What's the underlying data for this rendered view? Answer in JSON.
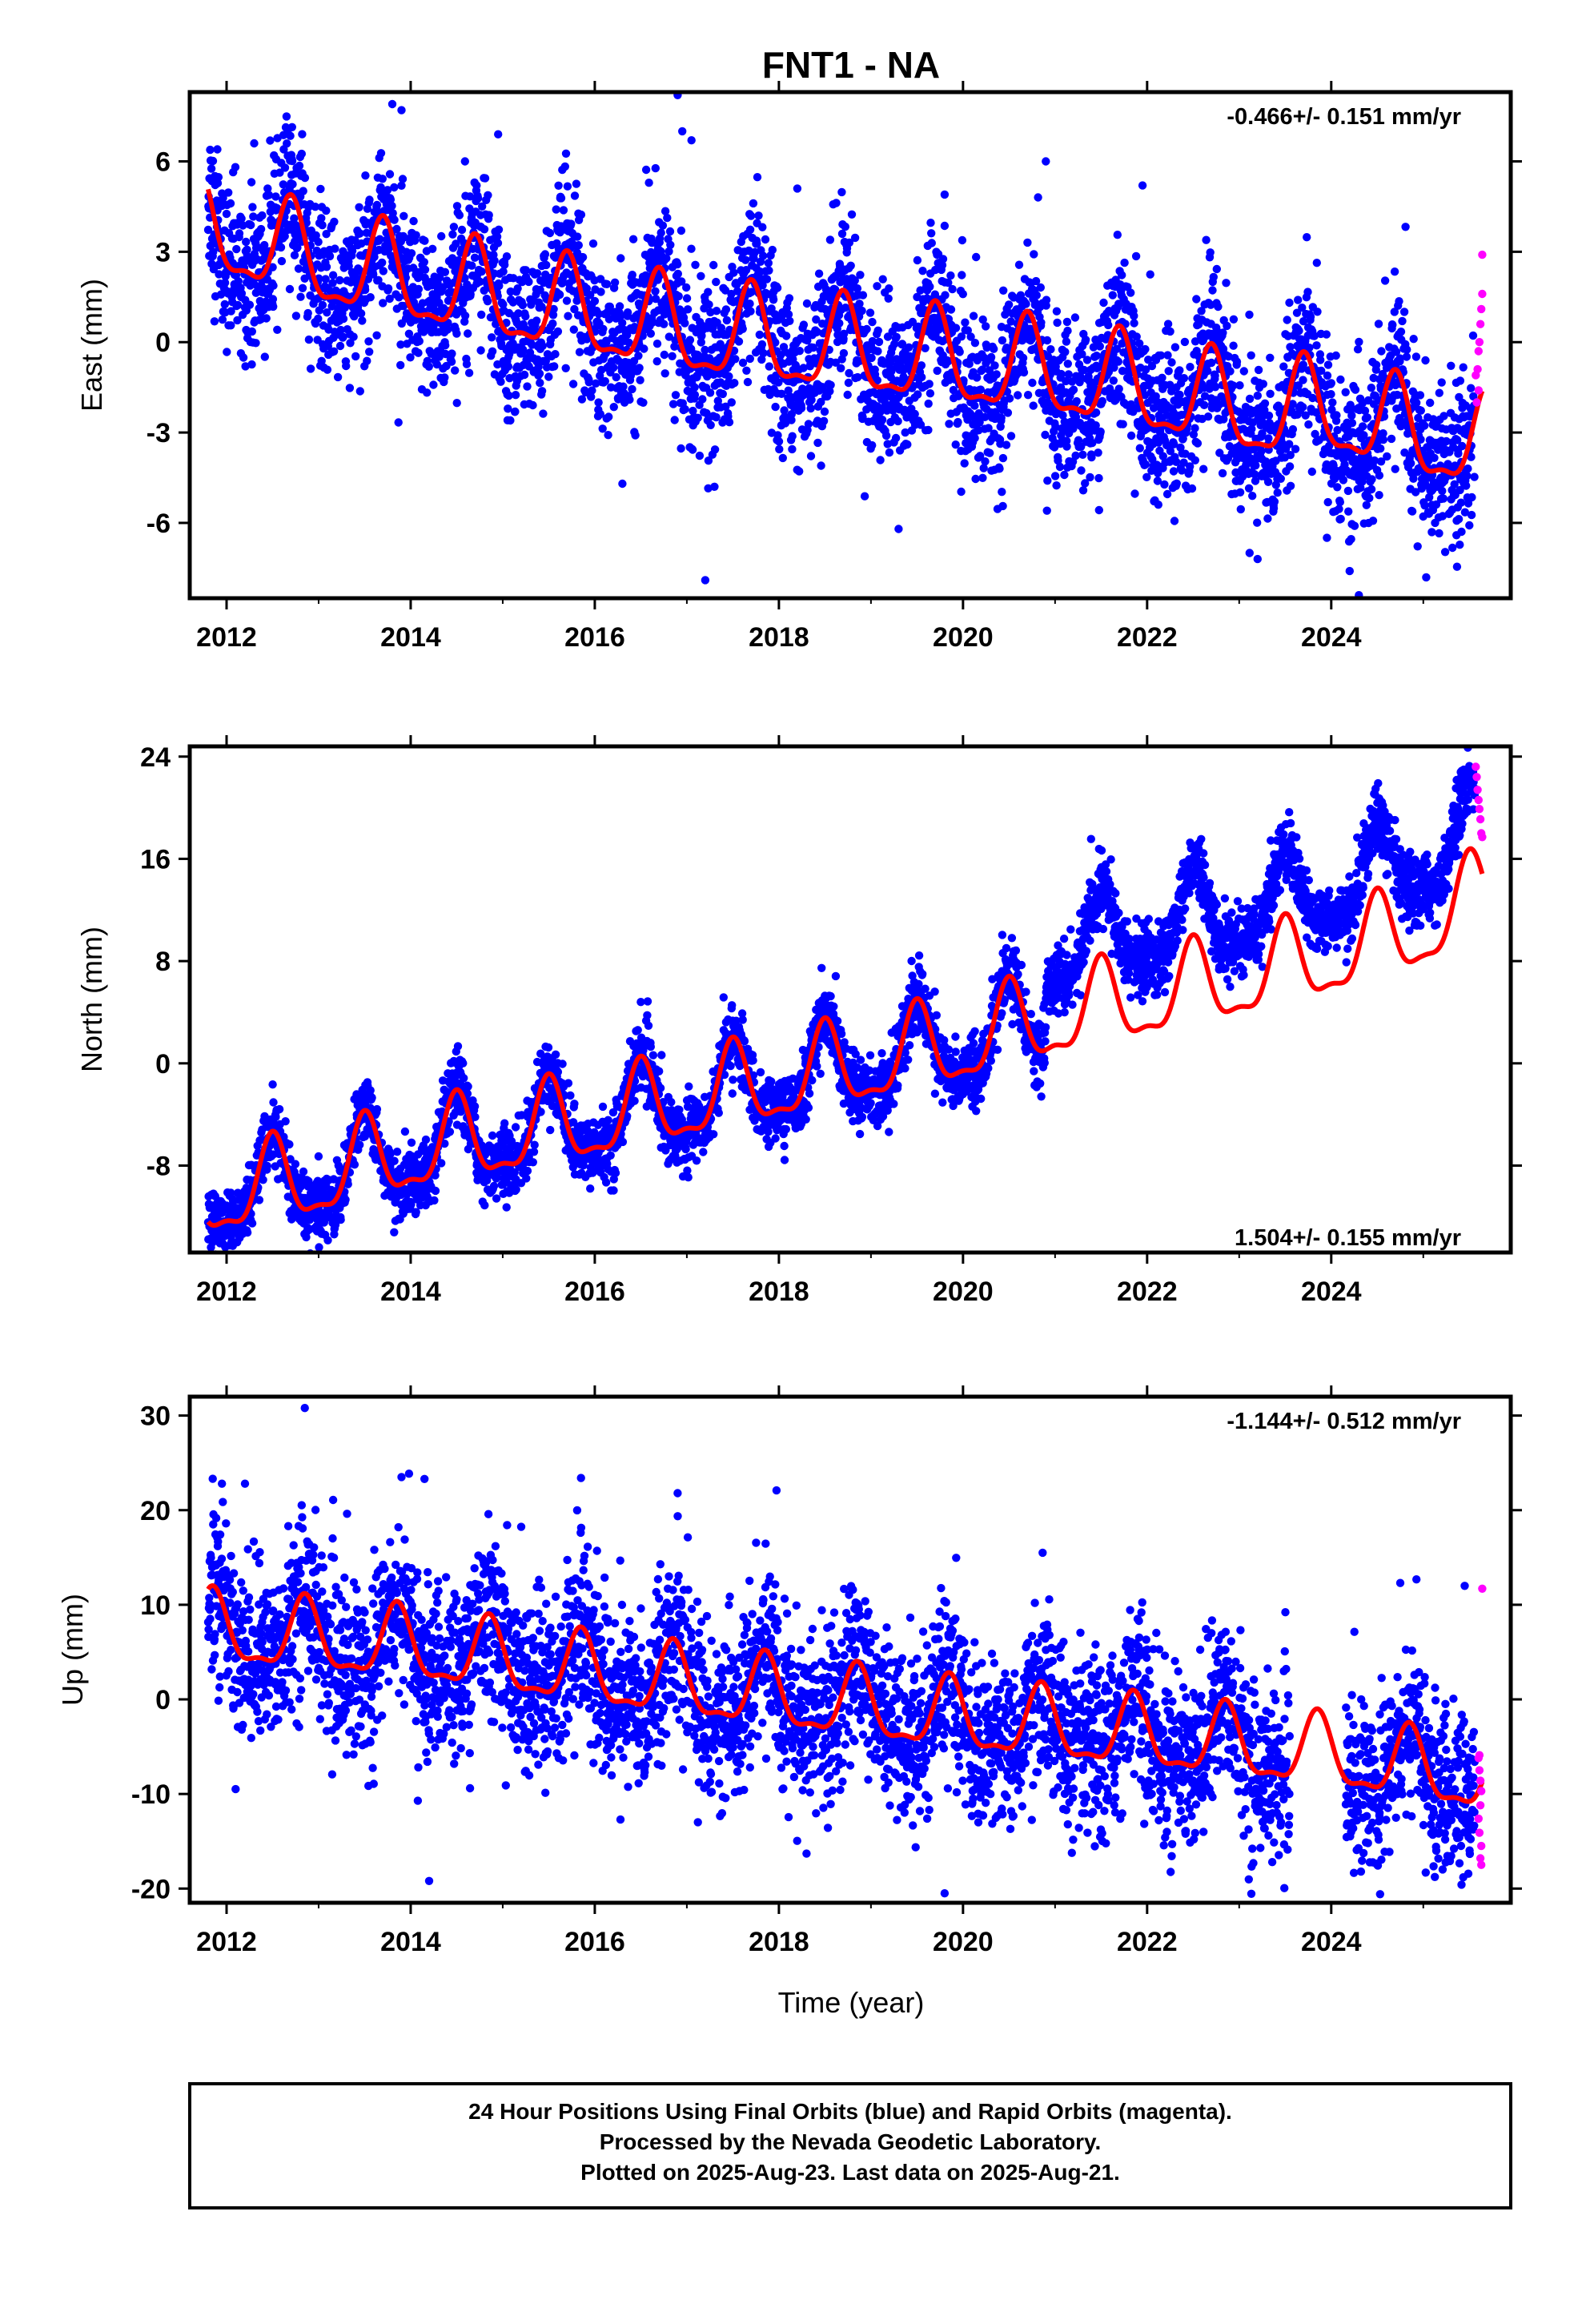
{
  "title": "FNT1 - NA",
  "colors": {
    "final": "#0000ff",
    "rapid": "#ff00ff",
    "model": "#ff0000"
  },
  "x_ticks": [
    "2012",
    "2014",
    "2016",
    "2018",
    "2020",
    "2022",
    "2024"
  ],
  "x_label": "Time (year)",
  "footer": {
    "line1": "24 Hour Positions Using Final Orbits (blue) and Rapid Orbits (magenta).",
    "line2": "Processed by the Nevada Geodetic Laboratory.",
    "line3": "Plotted on 2025-Aug-23. Last data on 2025-Aug-21."
  },
  "chart_data": [
    {
      "type": "scatter",
      "name": "east",
      "ylabel": "East (mm)",
      "rate": "-0.466+/- 0.151 mm/yr",
      "xlim": [
        2011.6,
        2025.95
      ],
      "ylim": [
        -8.5,
        8.3
      ],
      "yticks": [
        -6,
        -3,
        0,
        3,
        6
      ],
      "tick_labels": [
        "-6",
        "-3",
        "0",
        "3",
        "6"
      ],
      "data_start": 2011.8,
      "data_end": 2025.64,
      "rapid_start": 2025.56,
      "model": {
        "trend": [
          [
            2011.8,
            3.7
          ],
          [
            2013.0,
            2.6
          ],
          [
            2015.0,
            1.4
          ],
          [
            2017.0,
            0.3
          ],
          [
            2019.0,
            -0.4
          ],
          [
            2021.0,
            -1.1
          ],
          [
            2022.3,
            -1.8
          ],
          [
            2023.2,
            -2.4
          ],
          [
            2024.0,
            -2.3
          ],
          [
            2025.0,
            -3.2
          ],
          [
            2025.64,
            -3.4
          ]
        ],
        "amplitude": 1.5,
        "peak_phase": 0.7
      },
      "scatter": 1.3,
      "outliers": [
        [
          2011.9,
          6.4
        ],
        [
          2012.3,
          6.6
        ],
        [
          2013.8,
          7.9
        ],
        [
          2013.9,
          7.7
        ],
        [
          2016.9,
          8.2
        ],
        [
          2016.95,
          7.0
        ],
        [
          2017.05,
          6.7
        ],
        [
          2014.95,
          6.9
        ],
        [
          2018.2,
          5.1
        ],
        [
          2019.8,
          4.9
        ],
        [
          2020.9,
          6.0
        ],
        [
          2021.95,
          5.2
        ],
        [
          2017.3,
          -4.8
        ],
        [
          2017.2,
          -7.9
        ],
        [
          2019.3,
          -6.2
        ],
        [
          2016.3,
          -4.7
        ],
        [
          2024.3,
          -8.4
        ],
        [
          2024.2,
          -7.6
        ],
        [
          2023.2,
          -7.2
        ]
      ],
      "rapid_points": [
        [
          2025.57,
          -1.1
        ],
        [
          2025.59,
          -0.9
        ],
        [
          2025.6,
          -0.3
        ],
        [
          2025.61,
          0.0
        ],
        [
          2025.62,
          0.6
        ],
        [
          2025.63,
          1.1
        ],
        [
          2025.64,
          1.6
        ],
        [
          2025.64,
          2.9
        ],
        [
          2025.6,
          -1.6
        ],
        [
          2025.58,
          -2.0
        ]
      ]
    },
    {
      "type": "scatter",
      "name": "north",
      "ylabel": "North (mm)",
      "rate": "1.504+/- 0.155 mm/yr",
      "xlim": [
        2011.6,
        2025.95
      ],
      "ylim": [
        -14.8,
        24.8
      ],
      "yticks": [
        -8,
        0,
        8,
        16,
        24
      ],
      "tick_labels": [
        "-8",
        "0",
        "8",
        "16",
        "24"
      ],
      "data_start": 2011.8,
      "data_end": 2025.64,
      "rapid_start": 2025.56,
      "offset_at": 2020.9,
      "offset_mm": 5.2,
      "model": {
        "trend": [
          [
            2011.8,
            -10.5
          ],
          [
            2013.0,
            -9.0
          ],
          [
            2014.0,
            -7.0
          ],
          [
            2016.0,
            -4.5
          ],
          [
            2018.0,
            -1.5
          ],
          [
            2020.0,
            1.5
          ],
          [
            2021.0,
            3.5
          ],
          [
            2022.0,
            5.0
          ],
          [
            2023.0,
            6.5
          ],
          [
            2024.0,
            8.3
          ],
          [
            2025.0,
            10.5
          ],
          [
            2025.64,
            13.0
          ]
        ],
        "amplitude": 3.2,
        "peak_phase": 0.5
      },
      "scatter": 1.3,
      "outliers": [
        [
          2011.85,
          -14.0
        ],
        [
          2011.9,
          -13.5
        ],
        [
          2012.05,
          -13.6
        ],
        [
          2013.2,
          -11.2
        ],
        [
          2014.8,
          -9.3
        ],
        [
          2015.95,
          -9.8
        ],
        [
          2016.5,
          4.8
        ],
        [
          2017.4,
          2.6
        ],
        [
          2020.85,
          -2.6
        ]
      ],
      "rapid_points": [
        [
          2025.57,
          23.2
        ],
        [
          2025.58,
          22.4
        ],
        [
          2025.59,
          21.4
        ],
        [
          2025.6,
          20.6
        ],
        [
          2025.61,
          19.9
        ],
        [
          2025.62,
          19.1
        ],
        [
          2025.63,
          18.0
        ],
        [
          2025.64,
          17.7
        ]
      ]
    },
    {
      "type": "scatter",
      "name": "up",
      "ylabel": "Up (mm)",
      "rate": "-1.144+/- 0.512 mm/yr",
      "xlim": [
        2011.6,
        2025.95
      ],
      "ylim": [
        -21.5,
        32
      ],
      "yticks": [
        -20,
        -10,
        0,
        10,
        20,
        30
      ],
      "tick_labels": [
        "-20",
        "-10",
        "0",
        "10",
        "20",
        "30"
      ],
      "data_start": 2011.8,
      "data_end": 2025.64,
      "rapid_start": 2025.56,
      "gap": [
        2023.55,
        2024.15
      ],
      "model": {
        "trend": [
          [
            2011.8,
            7.2
          ],
          [
            2014.0,
            5.4
          ],
          [
            2016.0,
            2.6
          ],
          [
            2018.0,
            0.2
          ],
          [
            2020.0,
            -2.2
          ],
          [
            2022.0,
            -4.0
          ],
          [
            2024.0,
            -6.0
          ],
          [
            2025.0,
            -7.5
          ],
          [
            2025.64,
            -8.5
          ]
        ],
        "amplitude": 3.6,
        "peak_phase": 0.85
      },
      "scatter": 4.5,
      "outliers": [
        [
          2011.95,
          22.8
        ],
        [
          2012.2,
          22.8
        ],
        [
          2012.85,
          30.8
        ],
        [
          2014.15,
          23.3
        ],
        [
          2013.9,
          23.5
        ],
        [
          2015.85,
          23.4
        ],
        [
          2016.9,
          21.8
        ],
        [
          2014.2,
          -19.2
        ],
        [
          2018.3,
          -16.3
        ],
        [
          2019.8,
          -20.5
        ],
        [
          2024.75,
          12.3
        ],
        [
          2025.45,
          12.0
        ]
      ],
      "rapid_points": [
        [
          2025.64,
          11.7
        ],
        [
          2025.6,
          -6.2
        ],
        [
          2025.61,
          -7.5
        ],
        [
          2025.62,
          -8.6
        ],
        [
          2025.63,
          -9.7
        ],
        [
          2025.62,
          -11.2
        ],
        [
          2025.6,
          -12.6
        ],
        [
          2025.61,
          -14.1
        ],
        [
          2025.63,
          -15.5
        ],
        [
          2025.62,
          -16.8
        ],
        [
          2025.63,
          -17.5
        ],
        [
          2025.61,
          -5.9
        ]
      ]
    }
  ]
}
